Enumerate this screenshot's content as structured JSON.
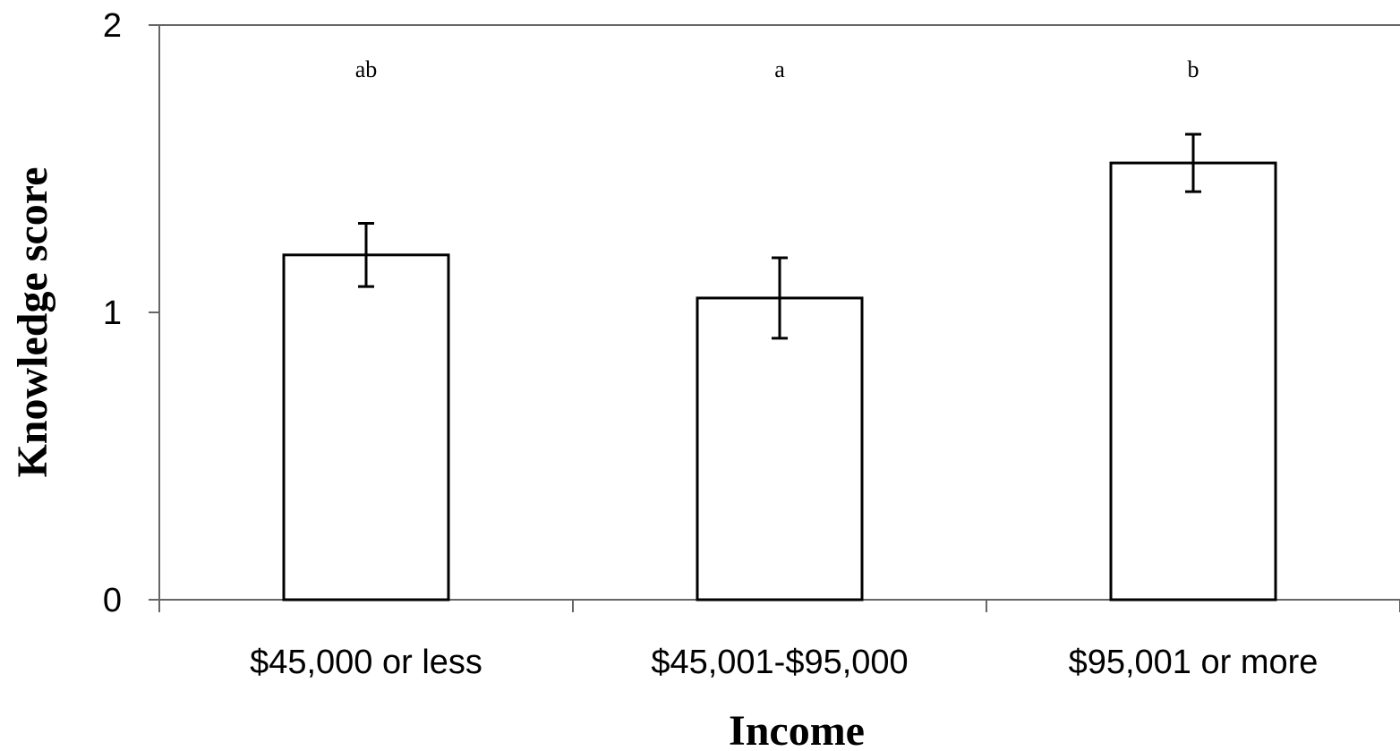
{
  "chart_data": {
    "type": "bar",
    "categories": [
      "$45,000 or less",
      "$45,001-$95,000",
      "$95,001 or more"
    ],
    "values": [
      1.2,
      1.05,
      1.52
    ],
    "error": [
      0.11,
      0.14,
      0.1
    ],
    "annotations": [
      "ab",
      "a",
      "b"
    ],
    "xlabel": "Income",
    "ylabel": "Knowledge score",
    "ylim": [
      0,
      2
    ],
    "yticks": [
      "0",
      "1",
      "2"
    ],
    "ytick_values": [
      0,
      1,
      2
    ],
    "grid": false,
    "colors": {
      "bar_fill": "#ffffff",
      "bar_stroke": "#000000",
      "axis": "#666666"
    }
  }
}
